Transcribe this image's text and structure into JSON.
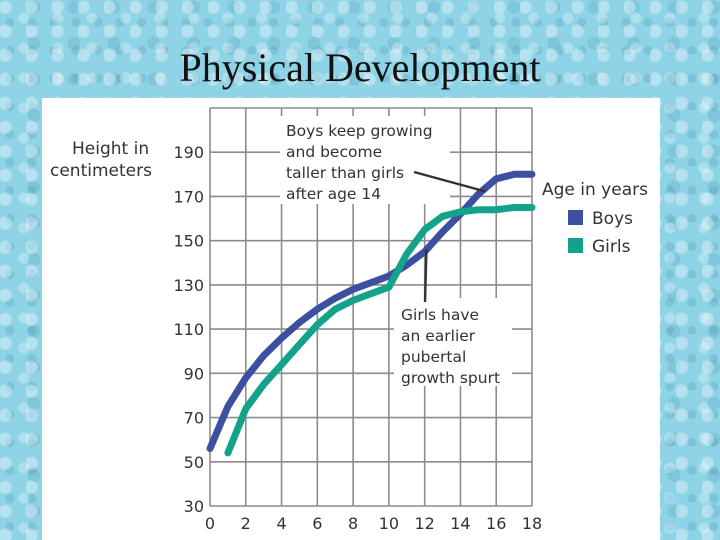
{
  "slide": {
    "title": "Physical Development"
  },
  "chart_data": {
    "type": "line",
    "title": "",
    "ylabel_lines": [
      "Height in",
      "centimeters"
    ],
    "xlabel": "",
    "xlim": [
      0,
      18
    ],
    "ylim": [
      30,
      210
    ],
    "xticks": [
      0,
      2,
      4,
      6,
      8,
      10,
      12,
      14,
      16,
      18
    ],
    "yticks": [
      30,
      50,
      70,
      90,
      110,
      130,
      150,
      170,
      190
    ],
    "grid": true,
    "legend": {
      "title": "Age in years",
      "placement": "right"
    },
    "series": [
      {
        "name": "Boys",
        "color": "#3d4fa0",
        "x": [
          0,
          1,
          2,
          3,
          4,
          5,
          6,
          7,
          8,
          9,
          10,
          11,
          12,
          13,
          14,
          15,
          16,
          17,
          18
        ],
        "y": [
          56,
          75,
          88,
          98,
          106,
          113,
          119,
          124,
          128,
          131,
          134,
          139,
          145,
          154,
          162,
          171,
          178,
          180,
          180
        ]
      },
      {
        "name": "Girls",
        "color": "#13a38a",
        "x": [
          1,
          2,
          3,
          4,
          5,
          6,
          7,
          8,
          9,
          10,
          11,
          12,
          13,
          14,
          15,
          16,
          17,
          18
        ],
        "y": [
          54,
          74,
          85,
          94,
          103,
          112,
          119,
          123,
          126,
          129,
          144,
          155,
          161,
          163,
          164,
          164,
          165,
          165
        ]
      }
    ],
    "annotations": [
      {
        "lines": [
          "Boys keep growing",
          "and become",
          "taller than girls",
          "after age 14"
        ],
        "target": [
          15.6,
          175
        ]
      },
      {
        "lines": [
          "Girls have",
          "an earlier",
          "pubertal",
          "growth spurt"
        ],
        "target": [
          12.1,
          148
        ]
      }
    ]
  }
}
